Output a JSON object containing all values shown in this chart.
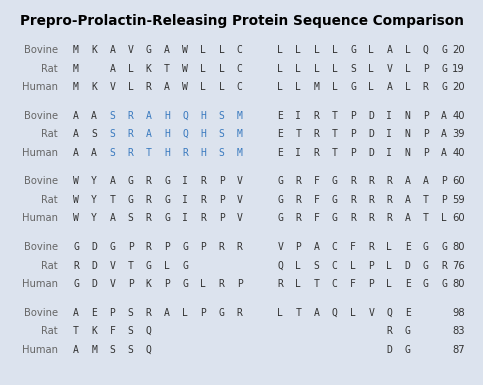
{
  "title": "Prepro-Prolactin-Releasing Protein Sequence Comparison",
  "background_color": "#dce3ee",
  "title_color": "#000000",
  "label_color": "#666666",
  "default_color": "#333333",
  "blue_color": "#3a7abf",
  "rows_data": [
    [
      "Bovine",
      [
        [
          "M",
          0
        ],
        [
          "K",
          1
        ],
        [
          "A",
          2
        ],
        [
          "V",
          3
        ],
        [
          "G",
          4
        ],
        [
          "A",
          5
        ],
        [
          "W",
          6
        ],
        [
          "L",
          7
        ],
        [
          "L",
          8
        ],
        [
          "C",
          9
        ],
        [
          "L",
          11
        ],
        [
          "L",
          12
        ],
        [
          "L",
          13
        ],
        [
          "L",
          14
        ],
        [
          "G",
          15
        ],
        [
          "L",
          16
        ],
        [
          "A",
          17
        ],
        [
          "L",
          18
        ],
        [
          "Q",
          19
        ],
        [
          "G",
          20
        ]
      ],
      "20",
      []
    ],
    [
      "Rat",
      [
        [
          "M",
          0
        ],
        [
          "A",
          2
        ],
        [
          "L",
          3
        ],
        [
          "K",
          4
        ],
        [
          "T",
          5
        ],
        [
          "W",
          6
        ],
        [
          "L",
          7
        ],
        [
          "L",
          8
        ],
        [
          "C",
          9
        ],
        [
          "L",
          11
        ],
        [
          "L",
          12
        ],
        [
          "L",
          13
        ],
        [
          "L",
          14
        ],
        [
          "S",
          15
        ],
        [
          "L",
          16
        ],
        [
          "V",
          17
        ],
        [
          "L",
          18
        ],
        [
          "P",
          19
        ],
        [
          "G",
          20
        ]
      ],
      "19",
      []
    ],
    [
      "Human",
      [
        [
          "M",
          0
        ],
        [
          "K",
          1
        ],
        [
          "V",
          2
        ],
        [
          "L",
          3
        ],
        [
          "R",
          4
        ],
        [
          "A",
          5
        ],
        [
          "W",
          6
        ],
        [
          "L",
          7
        ],
        [
          "L",
          8
        ],
        [
          "C",
          9
        ],
        [
          "L",
          11
        ],
        [
          "L",
          12
        ],
        [
          "M",
          13
        ],
        [
          "L",
          14
        ],
        [
          "G",
          15
        ],
        [
          "L",
          16
        ],
        [
          "A",
          17
        ],
        [
          "L",
          18
        ],
        [
          "R",
          19
        ],
        [
          "G",
          20
        ]
      ],
      "20",
      []
    ],
    null,
    [
      "Bovine",
      [
        [
          "A",
          0
        ],
        [
          "A",
          1
        ],
        [
          "S",
          2
        ],
        [
          "R",
          3
        ],
        [
          "A",
          4
        ],
        [
          "H",
          5
        ],
        [
          "Q",
          6
        ],
        [
          "H",
          7
        ],
        [
          "S",
          8
        ],
        [
          "M",
          9
        ],
        [
          "E",
          11
        ],
        [
          "I",
          12
        ],
        [
          "R",
          13
        ],
        [
          "T",
          14
        ],
        [
          "P",
          15
        ],
        [
          "D",
          16
        ],
        [
          "I",
          17
        ],
        [
          "N",
          18
        ],
        [
          "P",
          19
        ],
        [
          "A",
          20
        ]
      ],
      "40",
      [
        2,
        3,
        4,
        5,
        6,
        7,
        8,
        9
      ]
    ],
    [
      "Rat",
      [
        [
          "A",
          0
        ],
        [
          "S",
          1
        ],
        [
          "S",
          2
        ],
        [
          "R",
          3
        ],
        [
          "A",
          4
        ],
        [
          "H",
          5
        ],
        [
          "Q",
          6
        ],
        [
          "H",
          7
        ],
        [
          "S",
          8
        ],
        [
          "M",
          9
        ],
        [
          "E",
          11
        ],
        [
          "T",
          12
        ],
        [
          "R",
          13
        ],
        [
          "T",
          14
        ],
        [
          "P",
          15
        ],
        [
          "D",
          16
        ],
        [
          "I",
          17
        ],
        [
          "N",
          18
        ],
        [
          "P",
          19
        ],
        [
          "A",
          20
        ]
      ],
      "39",
      [
        2,
        3,
        4,
        5,
        6,
        7,
        8,
        9
      ]
    ],
    [
      "Human",
      [
        [
          "A",
          0
        ],
        [
          "A",
          1
        ],
        [
          "S",
          2
        ],
        [
          "R",
          3
        ],
        [
          "T",
          4
        ],
        [
          "H",
          5
        ],
        [
          "R",
          6
        ],
        [
          "H",
          7
        ],
        [
          "S",
          8
        ],
        [
          "M",
          9
        ],
        [
          "E",
          11
        ],
        [
          "I",
          12
        ],
        [
          "R",
          13
        ],
        [
          "T",
          14
        ],
        [
          "P",
          15
        ],
        [
          "D",
          16
        ],
        [
          "I",
          17
        ],
        [
          "N",
          18
        ],
        [
          "P",
          19
        ],
        [
          "A",
          20
        ]
      ],
      "40",
      [
        2,
        3,
        4,
        5,
        6,
        7,
        8,
        9
      ]
    ],
    null,
    [
      "Bovine",
      [
        [
          "W",
          0
        ],
        [
          "Y",
          1
        ],
        [
          "A",
          2
        ],
        [
          "G",
          3
        ],
        [
          "R",
          4
        ],
        [
          "G",
          5
        ],
        [
          "I",
          6
        ],
        [
          "R",
          7
        ],
        [
          "P",
          8
        ],
        [
          "V",
          9
        ],
        [
          "G",
          11
        ],
        [
          "R",
          12
        ],
        [
          "F",
          13
        ],
        [
          "G",
          14
        ],
        [
          "R",
          15
        ],
        [
          "R",
          16
        ],
        [
          "R",
          17
        ],
        [
          "A",
          18
        ],
        [
          "A",
          19
        ],
        [
          "P",
          20
        ]
      ],
      "60",
      []
    ],
    [
      "Rat",
      [
        [
          "W",
          0
        ],
        [
          "Y",
          1
        ],
        [
          "T",
          2
        ],
        [
          "G",
          3
        ],
        [
          "R",
          4
        ],
        [
          "G",
          5
        ],
        [
          "I",
          6
        ],
        [
          "R",
          7
        ],
        [
          "P",
          8
        ],
        [
          "V",
          9
        ],
        [
          "G",
          11
        ],
        [
          "R",
          12
        ],
        [
          "F",
          13
        ],
        [
          "G",
          14
        ],
        [
          "R",
          15
        ],
        [
          "R",
          16
        ],
        [
          "R",
          17
        ],
        [
          "A",
          18
        ],
        [
          "T",
          19
        ],
        [
          "P",
          20
        ]
      ],
      "59",
      []
    ],
    [
      "Human",
      [
        [
          "W",
          0
        ],
        [
          "Y",
          1
        ],
        [
          "A",
          2
        ],
        [
          "S",
          3
        ],
        [
          "R",
          4
        ],
        [
          "G",
          5
        ],
        [
          "I",
          6
        ],
        [
          "R",
          7
        ],
        [
          "P",
          8
        ],
        [
          "V",
          9
        ],
        [
          "G",
          11
        ],
        [
          "R",
          12
        ],
        [
          "F",
          13
        ],
        [
          "G",
          14
        ],
        [
          "R",
          15
        ],
        [
          "R",
          16
        ],
        [
          "R",
          17
        ],
        [
          "A",
          18
        ],
        [
          "T",
          19
        ],
        [
          "L",
          20
        ]
      ],
      "60",
      []
    ],
    null,
    [
      "Bovine",
      [
        [
          "G",
          0
        ],
        [
          "D",
          1
        ],
        [
          "G",
          2
        ],
        [
          "P",
          3
        ],
        [
          "R",
          4
        ],
        [
          "P",
          5
        ],
        [
          "G",
          6
        ],
        [
          "P",
          7
        ],
        [
          "R",
          8
        ],
        [
          "R",
          9
        ],
        [
          "V",
          11
        ],
        [
          "P",
          12
        ],
        [
          "A",
          13
        ],
        [
          "C",
          14
        ],
        [
          "F",
          15
        ],
        [
          "R",
          16
        ],
        [
          "L",
          17
        ],
        [
          "E",
          18
        ],
        [
          "G",
          19
        ],
        [
          "G",
          20
        ]
      ],
      "80",
      []
    ],
    [
      "Rat",
      [
        [
          "R",
          0
        ],
        [
          "D",
          1
        ],
        [
          "V",
          2
        ],
        [
          "T",
          3
        ],
        [
          "G",
          4
        ],
        [
          "L",
          5
        ],
        [
          "G",
          6
        ],
        [
          "Q",
          11
        ],
        [
          "L",
          12
        ],
        [
          "S",
          13
        ],
        [
          "C",
          14
        ],
        [
          "L",
          15
        ],
        [
          "P",
          16
        ],
        [
          "L",
          17
        ],
        [
          "D",
          18
        ],
        [
          "G",
          19
        ],
        [
          "R",
          20
        ]
      ],
      "76",
      []
    ],
    [
      "Human",
      [
        [
          "G",
          0
        ],
        [
          "D",
          1
        ],
        [
          "V",
          2
        ],
        [
          "P",
          3
        ],
        [
          "K",
          4
        ],
        [
          "P",
          5
        ],
        [
          "G",
          6
        ],
        [
          "L",
          7
        ],
        [
          "R",
          8
        ],
        [
          "P",
          9
        ],
        [
          "R",
          11
        ],
        [
          "L",
          12
        ],
        [
          "T",
          13
        ],
        [
          "C",
          14
        ],
        [
          "F",
          15
        ],
        [
          "P",
          16
        ],
        [
          "L",
          17
        ],
        [
          "E",
          18
        ],
        [
          "G",
          19
        ],
        [
          "G",
          20
        ]
      ],
      "80",
      []
    ],
    null,
    [
      "Bovine",
      [
        [
          "A",
          0
        ],
        [
          "E",
          1
        ],
        [
          "P",
          2
        ],
        [
          "S",
          3
        ],
        [
          "R",
          4
        ],
        [
          "A",
          5
        ],
        [
          "L",
          6
        ],
        [
          "P",
          7
        ],
        [
          "G",
          8
        ],
        [
          "R",
          9
        ],
        [
          "L",
          11
        ],
        [
          "T",
          12
        ],
        [
          "A",
          13
        ],
        [
          "Q",
          14
        ],
        [
          "L",
          15
        ],
        [
          "V",
          16
        ],
        [
          "Q",
          17
        ],
        [
          "E",
          18
        ]
      ],
      "98",
      []
    ],
    [
      "Rat",
      [
        [
          "T",
          0
        ],
        [
          "K",
          1
        ],
        [
          "F",
          2
        ],
        [
          "S",
          3
        ],
        [
          "Q",
          4
        ],
        [
          "R",
          17
        ],
        [
          "G",
          18
        ]
      ],
      "83",
      []
    ],
    [
      "Human",
      [
        [
          "A",
          0
        ],
        [
          "M",
          1
        ],
        [
          "S",
          2
        ],
        [
          "S",
          3
        ],
        [
          "Q",
          4
        ],
        [
          "D",
          17
        ],
        [
          "G",
          18
        ]
      ],
      "87",
      []
    ]
  ]
}
